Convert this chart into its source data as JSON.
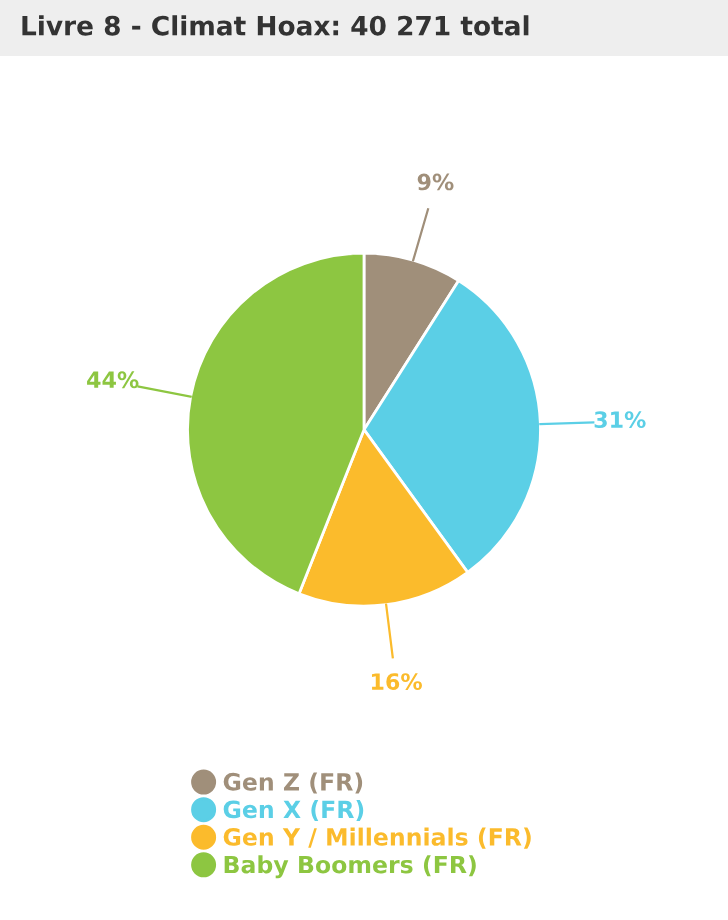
{
  "chart_data": {
    "type": "pie",
    "title": "Livre 8 - Climat Hoax: 40 271 total",
    "categories": [
      "Gen Z (FR)",
      "Gen X (FR)",
      "Gen Y / Millennials (FR)",
      "Baby Boomers (FR)"
    ],
    "values": [
      9,
      31,
      16,
      44
    ],
    "colors": [
      "#a08f7a",
      "#5bcfe6",
      "#fbbb2c",
      "#8dc641"
    ],
    "value_labels": [
      "9%",
      "31%",
      "16%",
      "44%"
    ],
    "legend": "bottom"
  }
}
